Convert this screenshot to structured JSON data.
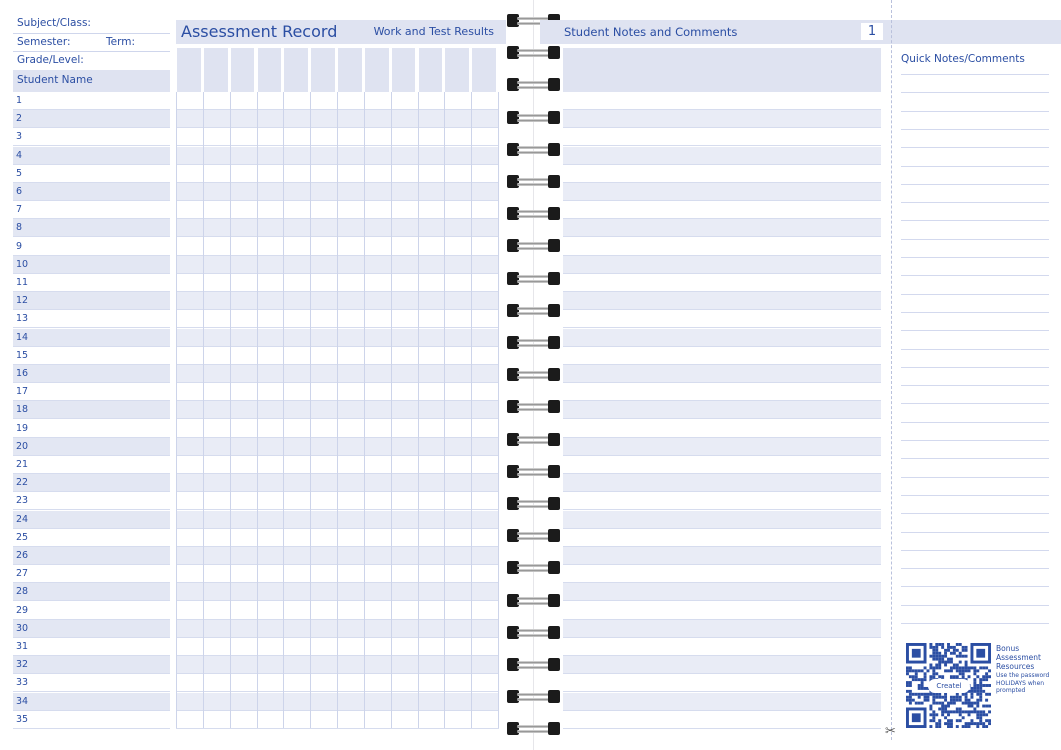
{
  "left_page": {
    "subject_label": "Subject/Class:",
    "semester_label": "Semester:",
    "term_label": "Term:",
    "grade_label": "Grade/Level:",
    "student_name_header": "Student Name",
    "title": "Assessment Record",
    "subtitle": "Work and Test Results",
    "column_count": 12,
    "rows": [
      "1",
      "2",
      "3",
      "4",
      "5",
      "6",
      "7",
      "8",
      "9",
      "10",
      "11",
      "12",
      "13",
      "14",
      "15",
      "16",
      "17",
      "18",
      "19",
      "20",
      "21",
      "22",
      "23",
      "24",
      "25",
      "26",
      "27",
      "28",
      "29",
      "30",
      "31",
      "32",
      "33",
      "34",
      "35"
    ]
  },
  "right_page": {
    "title": "Student Notes and Comments",
    "page_number": "1",
    "quick_notes_title": "Quick Notes/Comments",
    "qr": {
      "logo_text": "Createl",
      "heading": "Bonus Assessment Resources",
      "instructions": "Use the password HOLIDAYS when prompted"
    }
  },
  "colors": {
    "accent": "#2b4ea3",
    "band": "#dfe3f1",
    "row_shade": "#e3e7f3"
  },
  "icons": {
    "binding": "spiral-ring-icon",
    "cut": "scissors-icon"
  }
}
